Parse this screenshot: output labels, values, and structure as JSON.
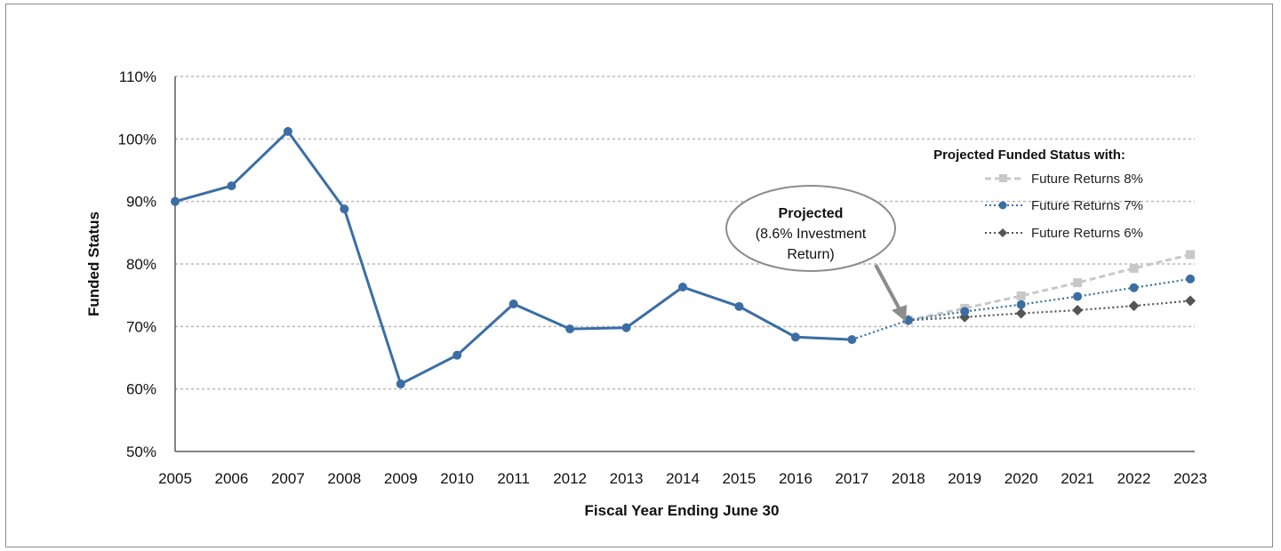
{
  "chart_data": {
    "type": "line",
    "title": "",
    "xlabel": "Fiscal Year Ending June 30",
    "ylabel": "Funded Status",
    "ylim": [
      50,
      110
    ],
    "yticks": [
      "50%",
      "60%",
      "70%",
      "80%",
      "90%",
      "100%",
      "110%"
    ],
    "x": [
      "2005",
      "2006",
      "2007",
      "2008",
      "2009",
      "2010",
      "2011",
      "2012",
      "2013",
      "2014",
      "2015",
      "2016",
      "2017",
      "2018",
      "2019",
      "2020",
      "2021",
      "2022",
      "2023"
    ],
    "grid": true,
    "series": [
      {
        "name": "",
        "x": [
          "2005",
          "2006",
          "2007",
          "2008",
          "2009",
          "2010",
          "2011",
          "2012",
          "2013",
          "2014",
          "2015",
          "2016",
          "2017"
        ],
        "values": [
          90.0,
          92.5,
          101.2,
          88.8,
          60.8,
          65.4,
          73.6,
          69.6,
          69.8,
          76.3,
          73.2,
          68.3,
          67.9
        ],
        "color": "#3a6ea5",
        "style": "solid",
        "marker": "circle"
      },
      {
        "name": "",
        "x": [
          "2017",
          "2018"
        ],
        "values": [
          67.9,
          71.0
        ],
        "color": "#3a6ea5",
        "style": "dotted",
        "marker": "none"
      },
      {
        "name": "Future Returns 8%",
        "x": [
          "2018",
          "2019",
          "2020",
          "2021",
          "2022",
          "2023"
        ],
        "values": [
          71.0,
          72.9,
          74.9,
          77.0,
          79.3,
          81.5
        ],
        "color": "#c8c8c8",
        "style": "dashed",
        "marker": "square"
      },
      {
        "name": "Future Returns 7%",
        "x": [
          "2018",
          "2019",
          "2020",
          "2021",
          "2022",
          "2023"
        ],
        "values": [
          71.0,
          72.4,
          73.5,
          74.8,
          76.2,
          77.6
        ],
        "color": "#3a6ea5",
        "style": "dotted",
        "marker": "circle"
      },
      {
        "name": "Future Returns 6%",
        "x": [
          "2018",
          "2019",
          "2020",
          "2021",
          "2022",
          "2023"
        ],
        "values": [
          71.0,
          71.5,
          72.1,
          72.6,
          73.3,
          74.1
        ],
        "color": "#555555",
        "style": "dotted",
        "marker": "diamond"
      }
    ],
    "legend": {
      "title": "Projected Funded Status with:",
      "placement": "top-right"
    },
    "annotation": {
      "line1": "Projected",
      "line2": "(8.6% Investment",
      "line3": "Return)",
      "points_to": "2018"
    }
  }
}
